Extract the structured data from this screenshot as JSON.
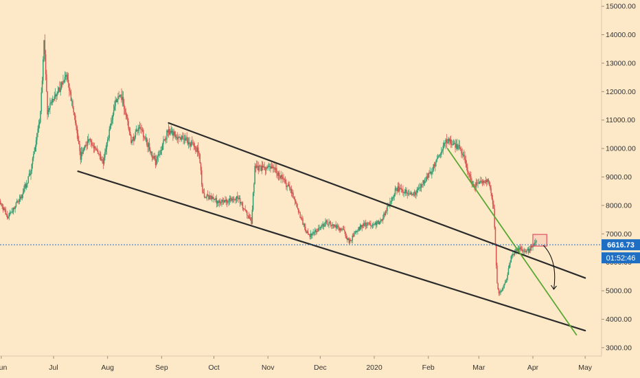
{
  "chart_data": {
    "type": "candlestick",
    "grid": false,
    "x_tick_labels": [
      "Jun",
      "Jul",
      "Aug",
      "Sep",
      "Oct",
      "Nov",
      "Dec",
      "2020",
      "Feb",
      "Mar",
      "Apr",
      "May"
    ],
    "y_tick_labels": [
      "3000.00",
      "4000.00",
      "5000.00",
      "6000.00",
      "7000.00",
      "8000.00",
      "9000.00",
      "10000.00",
      "11000.00",
      "12000.00",
      "13000.00",
      "14000.00",
      "15000.00"
    ],
    "ylim": [
      2900,
      15100
    ],
    "current_price": {
      "value": 6616.73,
      "label": "6616.73",
      "color": "#1e6fc4"
    },
    "countdown_label": "01:52:46",
    "colors": {
      "up": "#2f9e73",
      "down": "#d9534f",
      "background": "#fde9c8",
      "trendline": "#2b2b2b",
      "fast_trend": "#5aa832",
      "target_box": "#e05a6a",
      "arrow": "#111111"
    },
    "price_path": [
      [
        "2019-05-28",
        8600
      ],
      [
        "2019-06-05",
        7600
      ],
      [
        "2019-06-12",
        8200
      ],
      [
        "2019-06-18",
        9100
      ],
      [
        "2019-06-24",
        11200
      ],
      [
        "2019-06-26",
        13800
      ],
      [
        "2019-06-28",
        11300
      ],
      [
        "2019-07-03",
        11900
      ],
      [
        "2019-07-09",
        12500
      ],
      [
        "2019-07-13",
        11300
      ],
      [
        "2019-07-17",
        9700
      ],
      [
        "2019-07-22",
        10400
      ],
      [
        "2019-07-30",
        9500
      ],
      [
        "2019-08-06",
        11700
      ],
      [
        "2019-08-10",
        11800
      ],
      [
        "2019-08-15",
        10200
      ],
      [
        "2019-08-20",
        10800
      ],
      [
        "2019-08-29",
        9500
      ],
      [
        "2019-09-05",
        10600
      ],
      [
        "2019-09-15",
        10300
      ],
      [
        "2019-09-23",
        9900
      ],
      [
        "2019-09-25",
        8400
      ],
      [
        "2019-10-05",
        8100
      ],
      [
        "2019-10-15",
        8300
      ],
      [
        "2019-10-23",
        7400
      ],
      [
        "2019-10-25",
        9300
      ],
      [
        "2019-11-05",
        9300
      ],
      [
        "2019-11-15",
        8500
      ],
      [
        "2019-11-22",
        7300
      ],
      [
        "2019-11-25",
        6900
      ],
      [
        "2019-12-05",
        7400
      ],
      [
        "2019-12-15",
        7100
      ],
      [
        "2019-12-18",
        6700
      ],
      [
        "2019-12-25",
        7300
      ],
      [
        "2020-01-05",
        7400
      ],
      [
        "2020-01-14",
        8600
      ],
      [
        "2020-01-25",
        8400
      ],
      [
        "2020-02-04",
        9300
      ],
      [
        "2020-02-12",
        10300
      ],
      [
        "2020-02-20",
        10000
      ],
      [
        "2020-02-27",
        8700
      ],
      [
        "2020-03-07",
        8900
      ],
      [
        "2020-03-10",
        7900
      ],
      [
        "2020-03-12",
        5300
      ],
      [
        "2020-03-13",
        4900
      ],
      [
        "2020-03-17",
        5300
      ],
      [
        "2020-03-20",
        6200
      ],
      [
        "2020-03-24",
        6500
      ],
      [
        "2020-03-30",
        6400
      ],
      [
        "2020-04-03",
        6700
      ]
    ],
    "trendlines": [
      {
        "name": "channel-upper",
        "start": [
          "2019-09-05",
          10900
        ],
        "end": [
          "2020-05-01",
          5450
        ]
      },
      {
        "name": "channel-lower",
        "start": [
          "2019-07-15",
          9200
        ],
        "end": [
          "2020-05-01",
          3600
        ]
      },
      {
        "name": "fast-downtrend",
        "start": [
          "2020-02-12",
          10000
        ],
        "end": [
          "2020-04-26",
          3450
        ]
      }
    ],
    "target_zone": {
      "start": "2020-04-01",
      "end": "2020-04-09",
      "low": 6570,
      "high": 6980
    },
    "projection_arrow": {
      "start": [
        "2020-04-07",
        6600
      ],
      "end": [
        "2020-04-13",
        5050
      ]
    }
  }
}
